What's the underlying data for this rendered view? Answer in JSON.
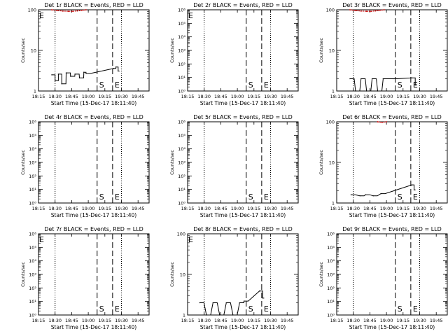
{
  "chart_data": [
    {
      "type": "line",
      "title": "Det 1r BLACK = Events, RED = LLD",
      "xlabel": "Start Time (15-Dec-17 18:11:40)",
      "ylabel": "Counts/sec",
      "y_scale": "log",
      "ylim": [
        1,
        100
      ],
      "y_ticks": [
        "1",
        "10",
        "100"
      ],
      "x_ticks": [
        "18:15",
        "18:30",
        "18:45",
        "19:00",
        "19:15",
        "19:30",
        "19:45"
      ],
      "xlim_minutes": [
        1095,
        1195
      ],
      "dotted_lines": [
        "18:30",
        "19:30"
      ],
      "dashed_lines": [
        "19:08",
        "19:22"
      ],
      "markers": [
        {
          "text": "S",
          "x": "19:08"
        },
        {
          "text": "E",
          "x": "19:22"
        },
        {
          "text": "E",
          "x": "18:15"
        }
      ],
      "series": [
        {
          "name": "Events",
          "color": "#000000",
          "x": [
            "18:27",
            "18:30",
            "18:33",
            "18:36",
            "18:40",
            "18:44",
            "18:48",
            "18:52",
            "18:56",
            "18:58",
            "19:23",
            "19:25",
            "19:27"
          ],
          "values": [
            2.5,
            1.8,
            2.6,
            1.5,
            2.8,
            2.3,
            2.6,
            2.1,
            2.9,
            2.7,
            3.6,
            3.9,
            3.1
          ]
        },
        {
          "name": "LLD",
          "color": "#cc0000",
          "x": [
            "18:27",
            "18:32",
            "18:37",
            "18:42",
            "18:46",
            "18:50",
            "18:54",
            "18:58"
          ],
          "values": [
            100,
            96,
            93,
            92,
            92,
            94,
            97,
            100
          ]
        }
      ]
    },
    {
      "type": "line",
      "title": "Det 2r BLACK = Events, RED = LLD",
      "xlabel": "Start Time (15-Dec-17 18:11:40)",
      "ylabel": "Counts/sec",
      "y_scale": "log",
      "ylim": [
        1,
        1000000
      ],
      "y_ticks": [
        "10⁰",
        "10¹",
        "10²",
        "10³",
        "10⁴",
        "10⁵",
        "10⁶"
      ],
      "x_ticks": [
        "18:15",
        "18:30",
        "18:45",
        "19:00",
        "19:15",
        "19:30",
        "19:45"
      ],
      "xlim_minutes": [
        1095,
        1195
      ],
      "dotted_lines": [
        "18:30",
        "19:30"
      ],
      "dashed_lines": [
        "19:08",
        "19:22"
      ],
      "markers": [
        {
          "text": "S",
          "x": "19:08"
        },
        {
          "text": "E",
          "x": "19:22"
        },
        {
          "text": "E",
          "x": "18:15"
        }
      ],
      "series": []
    },
    {
      "type": "line",
      "title": "Det 3r BLACK = Events, RED = LLD",
      "xlabel": "Start Time (15-Dec-17 18:11:40)",
      "ylabel": "Counts/sec",
      "y_scale": "log",
      "ylim": [
        1,
        100
      ],
      "y_ticks": [
        "1",
        "10",
        "100"
      ],
      "x_ticks": [
        "18:15",
        "18:30",
        "18:45",
        "19:00",
        "19:15",
        "19:30",
        "19:45"
      ],
      "xlim_minutes": [
        1095,
        1195
      ],
      "dotted_lines": [
        "18:30",
        "19:30"
      ],
      "dashed_lines": [
        "19:08",
        "19:22"
      ],
      "markers": [
        {
          "text": "S",
          "x": "19:08"
        },
        {
          "text": "E",
          "x": "19:22"
        }
      ],
      "series": [
        {
          "name": "Events",
          "color": "#000000",
          "x": [
            "18:27",
            "18:32",
            "18:37",
            "18:42",
            "18:47",
            "18:52",
            "18:57",
            "19:06",
            "19:23",
            "19:26"
          ],
          "values": [
            2.0,
            1.0,
            2.0,
            1.0,
            2.0,
            1.0,
            2.0,
            2.0,
            2.1,
            1.4
          ]
        },
        {
          "name": "LLD",
          "color": "#cc0000",
          "x": [
            "18:27",
            "18:32",
            "18:37",
            "18:42",
            "18:46",
            "18:50",
            "18:54",
            "18:58"
          ],
          "values": [
            100,
            96,
            93,
            92,
            92,
            94,
            97,
            100
          ]
        }
      ]
    },
    {
      "type": "line",
      "title": "Det 4r BLACK = Events, RED = LLD",
      "xlabel": "Start Time (15-Dec-17 18:11:40)",
      "ylabel": "Counts/sec",
      "y_scale": "log",
      "ylim": [
        1,
        1000000
      ],
      "y_ticks": [
        "10⁰",
        "10¹",
        "10²",
        "10³",
        "10⁴",
        "10⁵",
        "10⁶"
      ],
      "x_ticks": [
        "18:15",
        "18:30",
        "18:45",
        "19:00",
        "19:15",
        "19:30",
        "19:45"
      ],
      "xlim_minutes": [
        1095,
        1195
      ],
      "dotted_lines": [
        "18:30",
        "19:30"
      ],
      "dashed_lines": [
        "19:08",
        "19:22"
      ],
      "markers": [
        {
          "text": "S",
          "x": "19:08"
        },
        {
          "text": "E",
          "x": "19:22"
        }
      ],
      "series": []
    },
    {
      "type": "line",
      "title": "Det 5r BLACK = Events, RED = LLD",
      "xlabel": "Start Time (15-Dec-17 18:11:40)",
      "ylabel": "Counts/sec",
      "y_scale": "log",
      "ylim": [
        1,
        1000000
      ],
      "y_ticks": [
        "10⁰",
        "10¹",
        "10²",
        "10³",
        "10⁴",
        "10⁵",
        "10⁶"
      ],
      "x_ticks": [
        "18:15",
        "18:30",
        "18:45",
        "19:00",
        "19:15",
        "19:30",
        "19:45"
      ],
      "xlim_minutes": [
        1095,
        1195
      ],
      "dotted_lines": [
        "18:30",
        "19:30"
      ],
      "dashed_lines": [
        "19:08",
        "19:22"
      ],
      "markers": [
        {
          "text": "S",
          "x": "19:08"
        },
        {
          "text": "E",
          "x": "19:22"
        }
      ],
      "series": []
    },
    {
      "type": "line",
      "title": "Det 6r BLACK = Events, RED = LLD",
      "xlabel": "Start Time (15-Dec-17 18:11:40)",
      "ylabel": "Counts/sec",
      "y_scale": "log",
      "ylim": [
        1,
        100
      ],
      "y_ticks": [
        "1",
        "10",
        "100"
      ],
      "x_ticks": [
        "18:15",
        "18:30",
        "18:45",
        "19:00",
        "19:15",
        "19:30",
        "19:45"
      ],
      "xlim_minutes": [
        1095,
        1195
      ],
      "dotted_lines": [
        "18:30",
        "19:30"
      ],
      "dashed_lines": [
        "19:08",
        "19:22"
      ],
      "markers": [
        {
          "text": "S",
          "x": "19:08"
        },
        {
          "text": "E",
          "x": "19:22"
        }
      ],
      "series": [
        {
          "name": "Events",
          "color": "#000000",
          "x": [
            "18:28",
            "18:36",
            "18:41",
            "18:48",
            "18:55",
            "19:23",
            "19:25"
          ],
          "values": [
            1.6,
            1.5,
            1.6,
            1.5,
            1.7,
            2.8,
            2.1
          ]
        },
        {
          "name": "LLD",
          "color": "#cc0000",
          "x": [
            "18:52",
            "18:56",
            "19:00"
          ],
          "values": [
            100,
            97,
            100
          ]
        }
      ]
    },
    {
      "type": "line",
      "title": "Det 7r BLACK = Events, RED = LLD",
      "xlabel": "Start Time (15-Dec-17 18:11:40)",
      "ylabel": "Counts/sec",
      "y_scale": "log",
      "ylim": [
        1,
        1000000
      ],
      "y_ticks": [
        "10⁰",
        "10¹",
        "10²",
        "10³",
        "10⁴",
        "10⁵",
        "10⁶"
      ],
      "x_ticks": [
        "18:15",
        "18:30",
        "18:45",
        "19:00",
        "19:15",
        "19:30",
        "19:45"
      ],
      "xlim_minutes": [
        1095,
        1195
      ],
      "dotted_lines": [
        "18:30",
        "19:30"
      ],
      "dashed_lines": [
        "19:08",
        "19:22"
      ],
      "markers": [
        {
          "text": "S",
          "x": "19:08"
        },
        {
          "text": "E",
          "x": "19:22"
        },
        {
          "text": "E",
          "x": "18:15"
        }
      ],
      "series": []
    },
    {
      "type": "line",
      "title": "Det 8r BLACK = Events, RED = LLD",
      "xlabel": "Start Time (15-Dec-17 18:11:40)",
      "ylabel": "Counts/sec",
      "y_scale": "log",
      "ylim": [
        1,
        100
      ],
      "y_ticks": [
        "1",
        "10",
        "100"
      ],
      "x_ticks": [
        "18:15",
        "18:30",
        "18:45",
        "19:00",
        "19:15",
        "19:30",
        "19:45"
      ],
      "xlim_minutes": [
        1095,
        1195
      ],
      "dotted_lines": [
        "18:30",
        "19:30"
      ],
      "dashed_lines": [
        "19:08",
        "19:22"
      ],
      "markers": [
        {
          "text": "S",
          "x": "19:08"
        },
        {
          "text": "E",
          "x": "19:22"
        },
        {
          "text": "E",
          "x": "18:15"
        }
      ],
      "series": [
        {
          "name": "Events",
          "color": "#000000",
          "x": [
            "18:26",
            "18:32",
            "18:38",
            "18:44",
            "18:50",
            "18:56",
            "19:02",
            "19:06",
            "19:20",
            "19:23"
          ],
          "values": [
            2.0,
            1.0,
            2.0,
            1.0,
            2.0,
            1.0,
            2.0,
            2.2,
            3.9,
            2.6
          ]
        }
      ]
    },
    {
      "type": "line",
      "title": "Det 9r BLACK = Events, RED = LLD",
      "xlabel": "Start Time (15-Dec-17 18:11:40)",
      "ylabel": "Counts/sec",
      "y_scale": "log",
      "ylim": [
        1,
        1000000
      ],
      "y_ticks": [
        "10⁰",
        "10¹",
        "10²",
        "10³",
        "10⁴",
        "10⁵",
        "10⁶"
      ],
      "x_ticks": [
        "18:15",
        "18:30",
        "18:45",
        "19:00",
        "19:15",
        "19:30",
        "19:45"
      ],
      "xlim_minutes": [
        1095,
        1195
      ],
      "dotted_lines": [
        "18:30",
        "19:30"
      ],
      "dashed_lines": [
        "19:08",
        "19:22"
      ],
      "markers": [
        {
          "text": "S",
          "x": "19:08"
        },
        {
          "text": "E",
          "x": "19:22"
        }
      ],
      "series": []
    }
  ]
}
